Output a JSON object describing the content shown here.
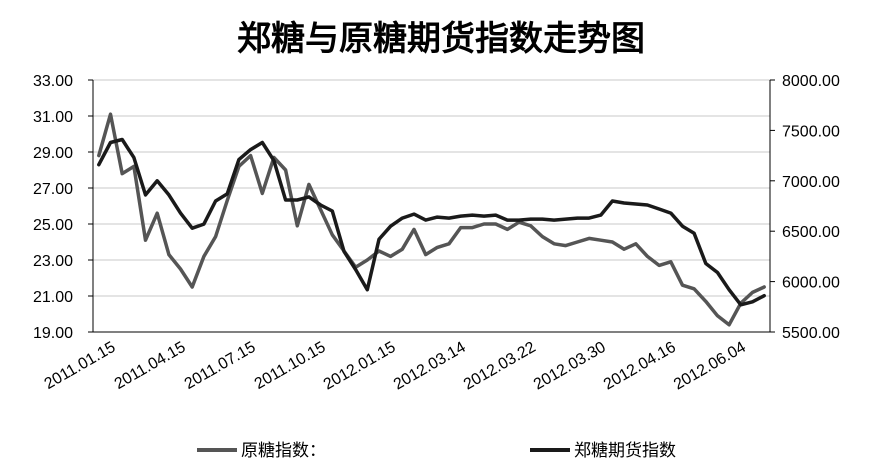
{
  "chart_data": {
    "type": "line",
    "title": "郑糖与原糖期货指数走势图",
    "x_tick_labels": [
      "2011.01.15",
      "2011.04.15",
      "2011.07.15",
      "2011.10.15",
      "2012.01.15",
      "2012.03.14",
      "2012.03.22",
      "2012.03.30",
      "2012.04.16",
      "2012.06.04"
    ],
    "y_left": {
      "ylim": [
        19.0,
        33.0
      ],
      "ticks": [
        "33.00",
        "31.00",
        "29.00",
        "27.00",
        "25.00",
        "23.00",
        "21.00",
        "19.00"
      ]
    },
    "y_right": {
      "ylim": [
        5500,
        8000
      ],
      "ticks": [
        "8000.00",
        "7500.00",
        "7000.00",
        "6500.00",
        "6000.00",
        "5500.00"
      ]
    },
    "grid": true,
    "legend_position": "bottom",
    "series": [
      {
        "name": "原糖指数：",
        "axis": "left",
        "color": "#555555",
        "values": [
          28.8,
          31.1,
          27.8,
          28.2,
          24.1,
          25.6,
          23.3,
          22.5,
          21.5,
          23.2,
          24.3,
          26.3,
          28.2,
          28.8,
          26.7,
          28.7,
          28.0,
          24.9,
          27.2,
          25.8,
          24.4,
          23.5,
          22.6,
          23.0,
          23.5,
          23.2,
          23.6,
          24.7,
          23.3,
          23.7,
          23.9,
          24.8,
          24.8,
          25.0,
          25.0,
          24.7,
          25.1,
          24.9,
          24.3,
          23.9,
          23.8,
          24.0,
          24.2,
          24.1,
          24.0,
          23.6,
          23.9,
          23.2,
          22.7,
          22.9,
          21.6,
          21.4,
          20.7,
          19.9,
          19.4,
          20.6,
          21.2,
          21.5
        ]
      },
      {
        "name": "郑糖期货指数",
        "axis": "right",
        "color": "#1a1a1a",
        "values": [
          7160,
          7380,
          7410,
          7230,
          6860,
          7000,
          6860,
          6680,
          6530,
          6570,
          6800,
          6870,
          7210,
          7310,
          7380,
          7200,
          6810,
          6810,
          6840,
          6760,
          6700,
          6300,
          6120,
          5920,
          6420,
          6550,
          6630,
          6670,
          6610,
          6640,
          6630,
          6650,
          6660,
          6650,
          6660,
          6610,
          6610,
          6620,
          6620,
          6610,
          6620,
          6630,
          6630,
          6660,
          6800,
          6780,
          6770,
          6760,
          6720,
          6680,
          6550,
          6480,
          6180,
          6090,
          5920,
          5770,
          5800,
          5860
        ]
      }
    ]
  }
}
